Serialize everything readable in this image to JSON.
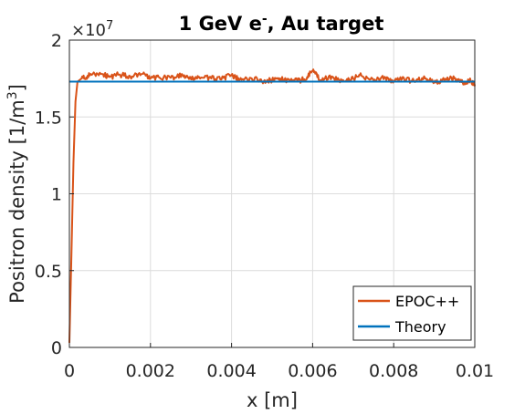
{
  "chart_data": {
    "type": "line",
    "title_main": "1 GeV e",
    "title_sup": "-",
    "title_rest": ", Au target",
    "xlabel": "x [m]",
    "ylabel_main": "Positron density [1/m",
    "ylabel_sup": "3",
    "ylabel_end": "]",
    "y_exponent_base": "×10",
    "y_exponent_power": "7",
    "xlim": [
      0,
      0.01
    ],
    "ylim": [
      0,
      20000000
    ],
    "x_ticks": [
      0,
      0.002,
      0.004,
      0.006,
      0.008,
      0.01
    ],
    "x_tick_labels": [
      "0",
      "0.002",
      "0.004",
      "0.006",
      "0.008",
      "0.01"
    ],
    "y_ticks": [
      0,
      5000000,
      10000000,
      15000000,
      20000000
    ],
    "y_tick_labels": [
      "0",
      "0.5",
      "1",
      "1.5",
      "2"
    ],
    "grid": true,
    "legend_position": "bottom-right",
    "series": [
      {
        "name": "EPOC++",
        "color": "#D95319",
        "x": [
          0,
          5e-05,
          0.0001,
          0.00015,
          0.0002,
          0.0003,
          0.0005,
          0.0008,
          0.001,
          0.0012,
          0.0015,
          0.0018,
          0.002,
          0.0022,
          0.0025,
          0.0028,
          0.003,
          0.0032,
          0.0035,
          0.0038,
          0.004,
          0.0042,
          0.0045,
          0.0048,
          0.005,
          0.0052,
          0.0055,
          0.0058,
          0.006,
          0.0062,
          0.0065,
          0.0068,
          0.007,
          0.0072,
          0.0075,
          0.0078,
          0.008,
          0.0082,
          0.0085,
          0.0088,
          0.009,
          0.0092,
          0.0095,
          0.0097,
          0.0099,
          0.01
        ],
        "y": [
          300000,
          6000000,
          12000000,
          16000000,
          17300000,
          17500000,
          17700000,
          17800000,
          17600000,
          17750000,
          17650000,
          17800000,
          17500000,
          17600000,
          17550000,
          17700000,
          17450000,
          17600000,
          17500000,
          17550000,
          17700000,
          17400000,
          17500000,
          17350000,
          17400000,
          17500000,
          17300000,
          17450000,
          18000000,
          17400000,
          17600000,
          17300000,
          17500000,
          17700000,
          17400000,
          17550000,
          17300000,
          17450000,
          17350000,
          17500000,
          17250000,
          17400000,
          17500000,
          17250000,
          17350000,
          17000000
        ]
      },
      {
        "name": "Theory",
        "color": "#0072BD",
        "x": [
          0,
          0.01
        ],
        "y": [
          17300000,
          17300000
        ]
      }
    ]
  }
}
